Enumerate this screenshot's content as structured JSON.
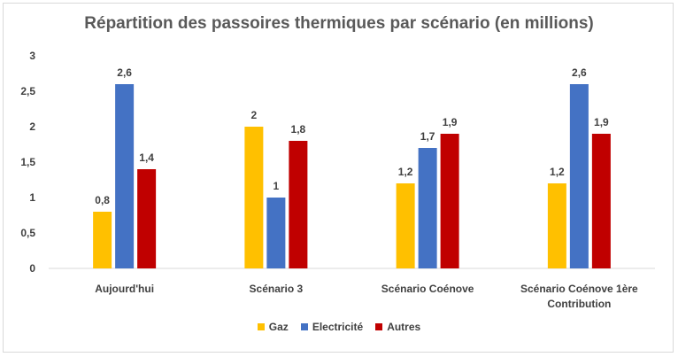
{
  "chart_data": {
    "type": "bar",
    "title": "Répartition des passoires thermiques par scénario (en millions)",
    "categories": [
      "Aujourd'hui",
      "Scénario 3",
      "Scénario Coénove",
      "Scénario Coénove 1ère Contribution"
    ],
    "category_lines": [
      [
        "Aujourd'hui"
      ],
      [
        "Scénario 3"
      ],
      [
        "Scénario Coénove"
      ],
      [
        "Scénario Coénove 1ère",
        "Contribution"
      ]
    ],
    "series": [
      {
        "name": "Gaz",
        "values": [
          0.8,
          2,
          1.2,
          1.2
        ],
        "labels": [
          "0,8",
          "2",
          "1,2",
          "1,2"
        ],
        "color": "#ffc000"
      },
      {
        "name": "Electricité",
        "values": [
          2.6,
          1,
          1.7,
          2.6
        ],
        "labels": [
          "2,6",
          "1",
          "1,7",
          "2,6"
        ],
        "color": "#4472c4"
      },
      {
        "name": "Autres",
        "values": [
          1.4,
          1.8,
          1.9,
          1.9
        ],
        "labels": [
          "1,4",
          "1,8",
          "1,9",
          "1,9"
        ],
        "color": "#c00000"
      }
    ],
    "ylim": [
      0,
      3
    ],
    "yticks": [
      0,
      0.5,
      1,
      1.5,
      2,
      2.5,
      3
    ],
    "ytick_labels": [
      "0",
      "0,5",
      "1",
      "1,5",
      "2",
      "2,5",
      "3"
    ],
    "xlabel": "",
    "ylabel": "",
    "grid": false,
    "legend_position": "bottom"
  }
}
